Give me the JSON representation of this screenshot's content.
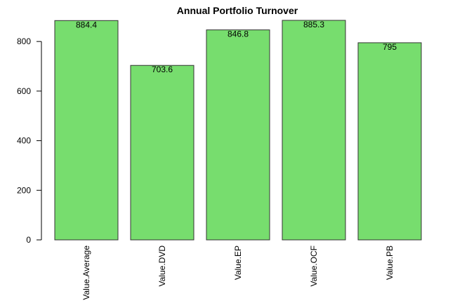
{
  "chart_data": {
    "type": "bar",
    "title": "Annual Portfolio Turnover",
    "xlabel": "",
    "ylabel": "",
    "categories": [
      "Value.Average",
      "Value.DVD",
      "Value.EP",
      "Value.OCF",
      "Value.PB"
    ],
    "values": [
      884.4,
      703.6,
      846.8,
      885.3,
      795
    ],
    "data_labels": [
      "884.4",
      "703.6",
      "846.8",
      "885.3",
      "795"
    ],
    "ylim": [
      0,
      885.3
    ],
    "yticks": [
      0,
      200,
      400,
      600,
      800
    ],
    "ytick_labels": [
      "0",
      "200",
      "400",
      "600",
      "800"
    ],
    "bar_color": "#77DD6E",
    "grid": false,
    "legend": "none"
  }
}
